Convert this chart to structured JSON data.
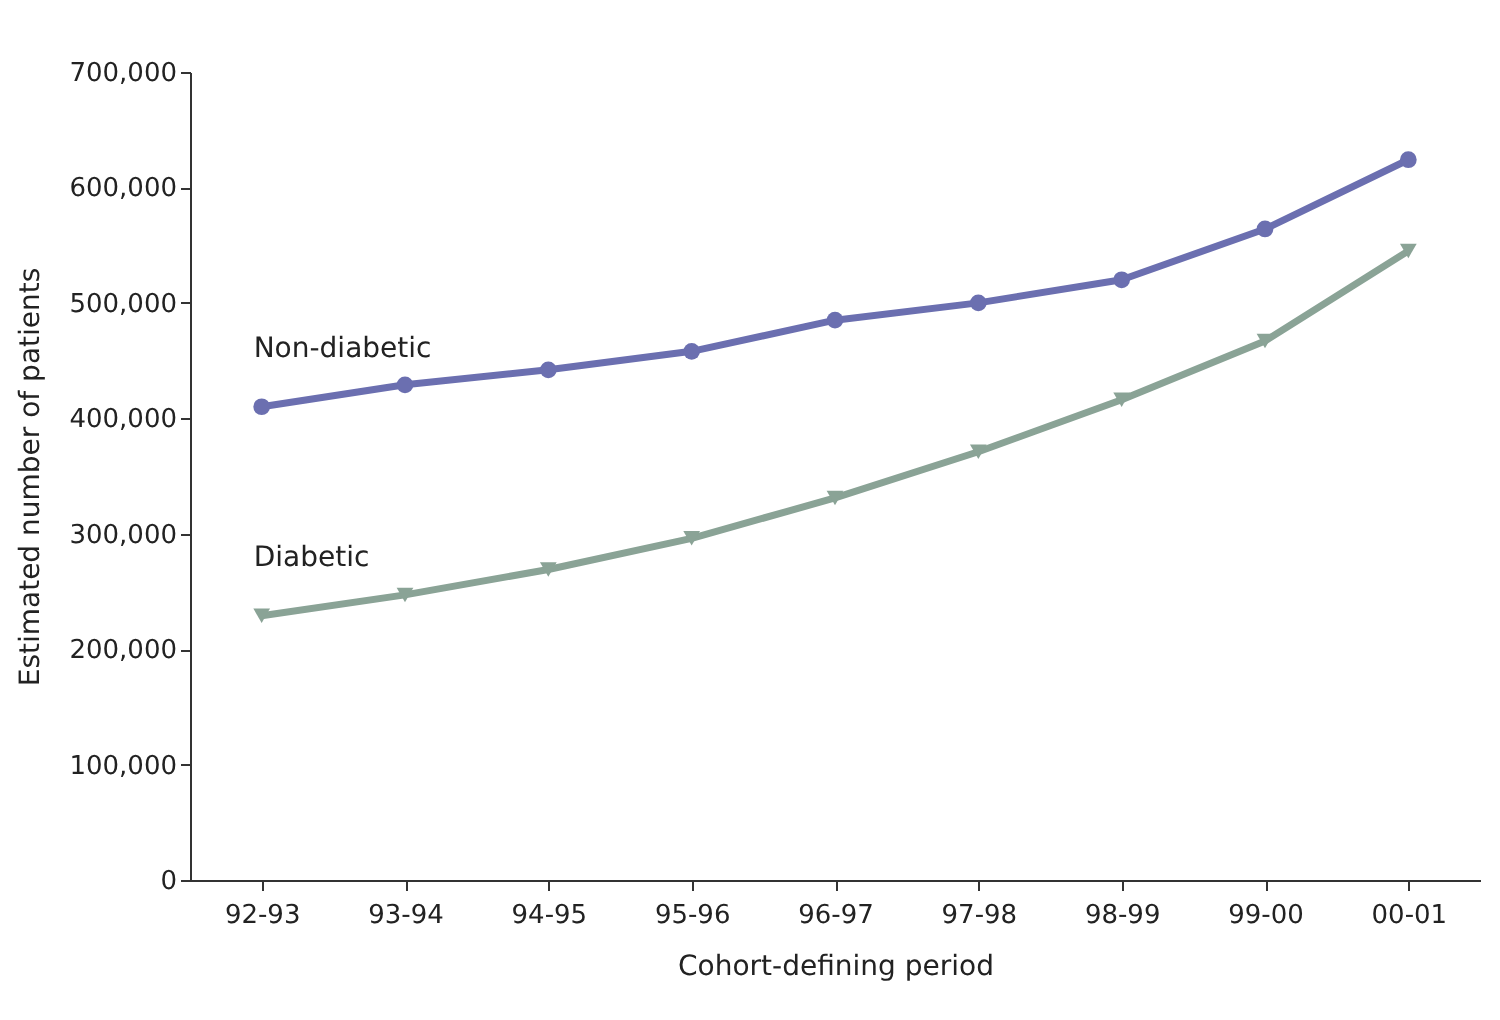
{
  "chart_data": {
    "type": "line",
    "xlabel": "Cohort-defining period",
    "ylabel": "Estimated number of patients",
    "categories": [
      "92-93",
      "93-94",
      "94-95",
      "95-96",
      "96-97",
      "97-98",
      "98-99",
      "99-00",
      "00-01"
    ],
    "series": [
      {
        "name": "Non-diabetic",
        "color": "#6b6fb0",
        "marker": "circle",
        "values": [
          410000,
          429000,
          442000,
          458000,
          485000,
          500000,
          520000,
          564000,
          624000
        ]
      },
      {
        "name": "Diabetic",
        "color": "#8aa396",
        "marker": "triangle",
        "values": [
          229000,
          247000,
          269000,
          296000,
          331000,
          371000,
          416000,
          467000,
          545000
        ]
      }
    ],
    "ylim": [
      0,
      700000
    ],
    "yticks": [
      0,
      {
        "value": 100000,
        "label": "100,000"
      },
      {
        "value": 200000,
        "label": "200,000"
      },
      {
        "value": 300000,
        "label": "300,000"
      },
      {
        "value": 400000,
        "label": "400,000"
      },
      {
        "value": 500000,
        "label": "500,000"
      },
      {
        "value": 600000,
        "label": "600,000"
      },
      {
        "value": 700000,
        "label": "700,000"
      }
    ],
    "grid": false,
    "line_style": "solid"
  }
}
